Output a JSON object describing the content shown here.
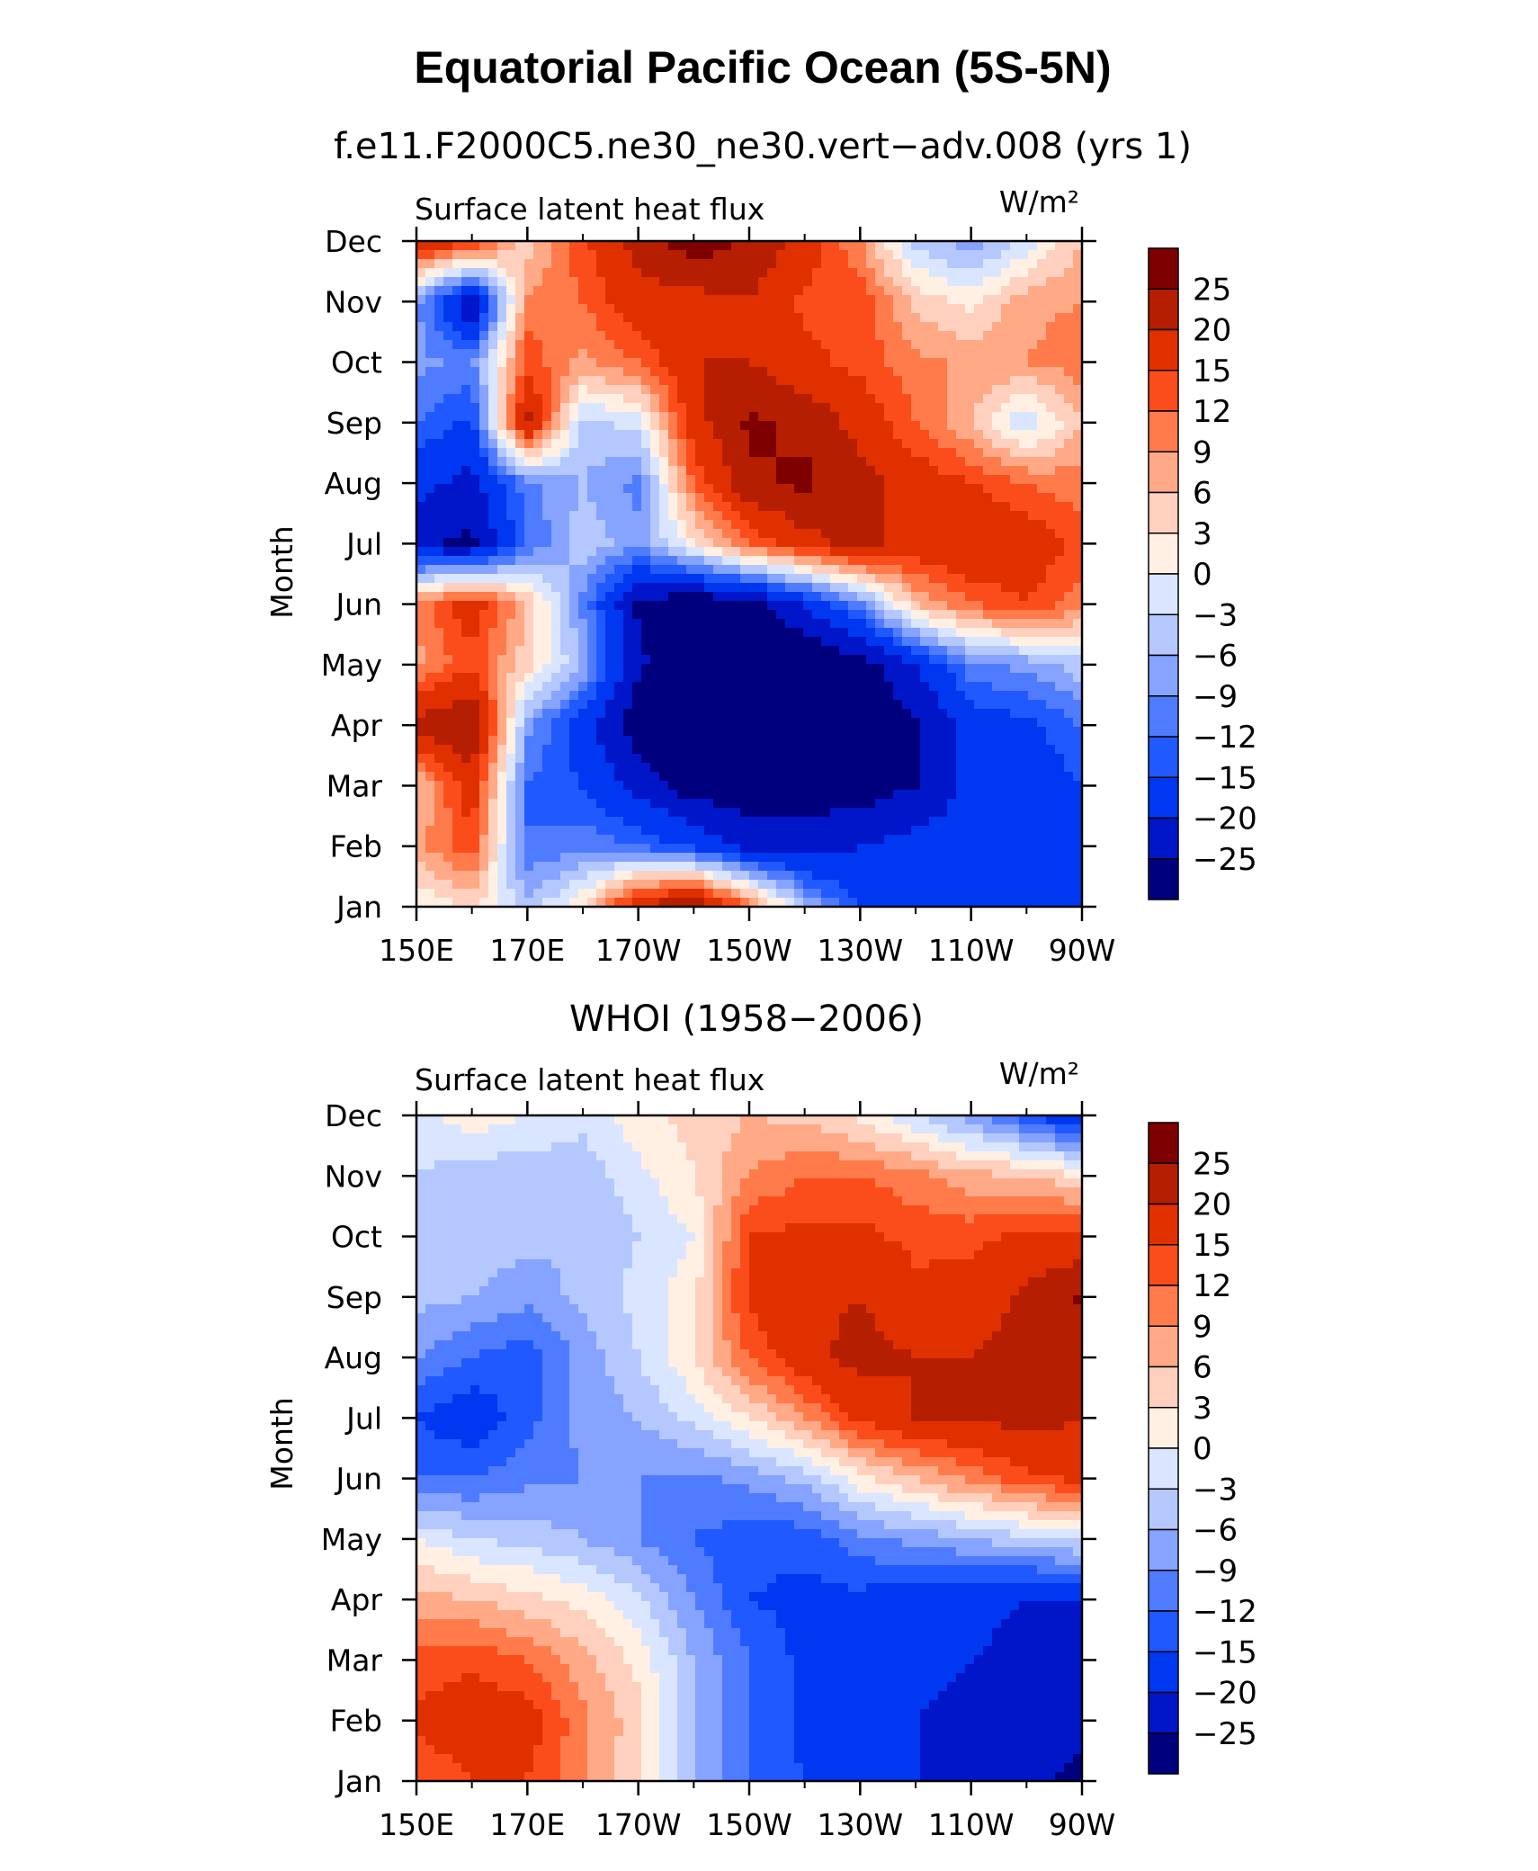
{
  "figure": {
    "title": "Equatorial Pacific Ocean (5S-5N)"
  },
  "colors": {
    "palette": [
      "#00007f",
      "#0016c8",
      "#0037f0",
      "#2059ff",
      "#4f7cff",
      "#85a3ff",
      "#b4c7ff",
      "#dae6ff",
      "#fff0e3",
      "#ffd0bd",
      "#ffa987",
      "#ff7b4b",
      "#fb4d1b",
      "#e03000",
      "#b51e00",
      "#7f0000"
    ]
  },
  "chart_data": [
    {
      "type": "heatmap",
      "title": "f.e11.F2000C5.ne30_ne30.vert−adv.008 (yrs 1)",
      "subtitle": "Surface latent heat flux",
      "units": "W/m²",
      "xlabel": "",
      "ylabel": "Month",
      "x": [
        150,
        160,
        170,
        180,
        190,
        200,
        210,
        220,
        230,
        240,
        250,
        260,
        270
      ],
      "x_tick_labels": [
        "150E",
        "170E",
        "170W",
        "150W",
        "130W",
        "110W",
        "90W"
      ],
      "y": [
        "Jan",
        "Feb",
        "Mar",
        "Apr",
        "May",
        "Jun",
        "Jul",
        "Aug",
        "Sep",
        "Oct",
        "Nov",
        "Dec"
      ],
      "levels": [
        -25,
        -20,
        -15,
        -12,
        -9,
        -6,
        -3,
        0,
        3,
        6,
        9,
        12,
        15,
        20,
        25
      ],
      "colorbar_labels": [
        "25",
        "20",
        "15",
        "12",
        "9",
        "6",
        "3",
        "0",
        "−3",
        "−6",
        "−9",
        "−12",
        "−15",
        "−20",
        "−25"
      ],
      "values": [
        [
          0,
          4,
          -5,
          3,
          20,
          26,
          12,
          -6,
          -15,
          -18,
          -20,
          -20,
          -18
        ],
        [
          8,
          14,
          -12,
          -10,
          -12,
          -16,
          -22,
          -22,
          -20,
          -18,
          -18,
          -20,
          -15
        ],
        [
          5,
          18,
          -12,
          -15,
          -22,
          -28,
          -28,
          -28,
          -28,
          -25,
          -18,
          -18,
          -15
        ],
        [
          22,
          26,
          -8,
          -18,
          -28,
          -30,
          -30,
          -30,
          -30,
          -26,
          -18,
          -16,
          -12
        ],
        [
          8,
          14,
          4,
          -6,
          -24,
          -30,
          -30,
          -30,
          -28,
          -20,
          -10,
          -8,
          -4
        ],
        [
          10,
          18,
          6,
          -10,
          -26,
          -30,
          -28,
          -20,
          -10,
          6,
          12,
          15,
          10
        ],
        [
          -24,
          -26,
          -12,
          -4,
          -8,
          2,
          12,
          18,
          22,
          18,
          20,
          18,
          14
        ],
        [
          -18,
          -22,
          -10,
          -6,
          -10,
          12,
          24,
          26,
          22,
          18,
          15,
          12,
          10
        ],
        [
          -12,
          -16,
          22,
          -4,
          -2,
          18,
          26,
          24,
          18,
          12,
          6,
          -3,
          6
        ],
        [
          -8,
          -10,
          14,
          8,
          12,
          20,
          20,
          16,
          14,
          10,
          8,
          9,
          11
        ],
        [
          -8,
          -26,
          10,
          12,
          18,
          18,
          20,
          14,
          14,
          5,
          2,
          8,
          9
        ],
        [
          20,
          16,
          4,
          14,
          22,
          28,
          24,
          18,
          9,
          -4,
          -8,
          -2,
          6
        ]
      ]
    },
    {
      "type": "heatmap",
      "title": "WHOI (1958−2006)",
      "subtitle": "Surface latent heat flux",
      "units": "W/m²",
      "xlabel": "",
      "ylabel": "Month",
      "x": [
        150,
        160,
        170,
        180,
        190,
        200,
        210,
        220,
        230,
        240,
        250,
        260,
        270
      ],
      "x_tick_labels": [
        "150E",
        "170E",
        "170W",
        "150W",
        "130W",
        "110W",
        "90W"
      ],
      "y": [
        "Jan",
        "Feb",
        "Mar",
        "Apr",
        "May",
        "Jun",
        "Jul",
        "Aug",
        "Sep",
        "Oct",
        "Nov",
        "Dec"
      ],
      "levels": [
        -25,
        -20,
        -15,
        -12,
        -9,
        -6,
        -3,
        0,
        3,
        6,
        9,
        12,
        15,
        20,
        25
      ],
      "colorbar_labels": [
        "25",
        "20",
        "15",
        "12",
        "9",
        "6",
        "3",
        "0",
        "−3",
        "−6",
        "−9",
        "−12",
        "−15",
        "−20",
        "−25"
      ],
      "values": [
        [
          12,
          15,
          15,
          9,
          4,
          -6,
          -12,
          -15,
          -18,
          -20,
          -22,
          -24,
          -26
        ],
        [
          16,
          18,
          17,
          10,
          4,
          -6,
          -12,
          -16,
          -18,
          -20,
          -22,
          -24,
          -24
        ],
        [
          13,
          14,
          12,
          7,
          2,
          -6,
          -12,
          -16,
          -18,
          -18,
          -20,
          -22,
          -22
        ],
        [
          7,
          6,
          4,
          2,
          -2,
          -9,
          -15,
          -16,
          -16,
          -18,
          -18,
          -20,
          -20
        ],
        [
          0,
          -3,
          -4,
          -6,
          -9,
          -12,
          -14,
          -14,
          -10,
          -8,
          -6,
          -4,
          -2
        ],
        [
          -12,
          -12,
          -10,
          -9,
          -9,
          -10,
          -8,
          -5,
          2,
          6,
          10,
          14,
          16
        ],
        [
          -15,
          -18,
          -13,
          -8,
          -6,
          -2,
          3,
          9,
          16,
          20,
          20,
          22,
          20
        ],
        [
          -9,
          -12,
          -14,
          -8,
          -3,
          3,
          12,
          18,
          22,
          20,
          20,
          22,
          22
        ],
        [
          -5,
          -6,
          -8,
          -5,
          -2,
          2,
          16,
          19,
          20,
          16,
          17,
          21,
          26
        ],
        [
          -4,
          -4,
          -5,
          -6,
          -3,
          0,
          15,
          16,
          16,
          14,
          14,
          16,
          16
        ],
        [
          -3,
          -5,
          -5,
          -5,
          -1,
          3,
          9,
          12,
          12,
          10,
          7,
          6,
          3
        ],
        [
          -1,
          2,
          0,
          -2,
          2,
          4,
          6,
          5,
          2,
          -3,
          -8,
          -14,
          -20
        ]
      ]
    }
  ]
}
